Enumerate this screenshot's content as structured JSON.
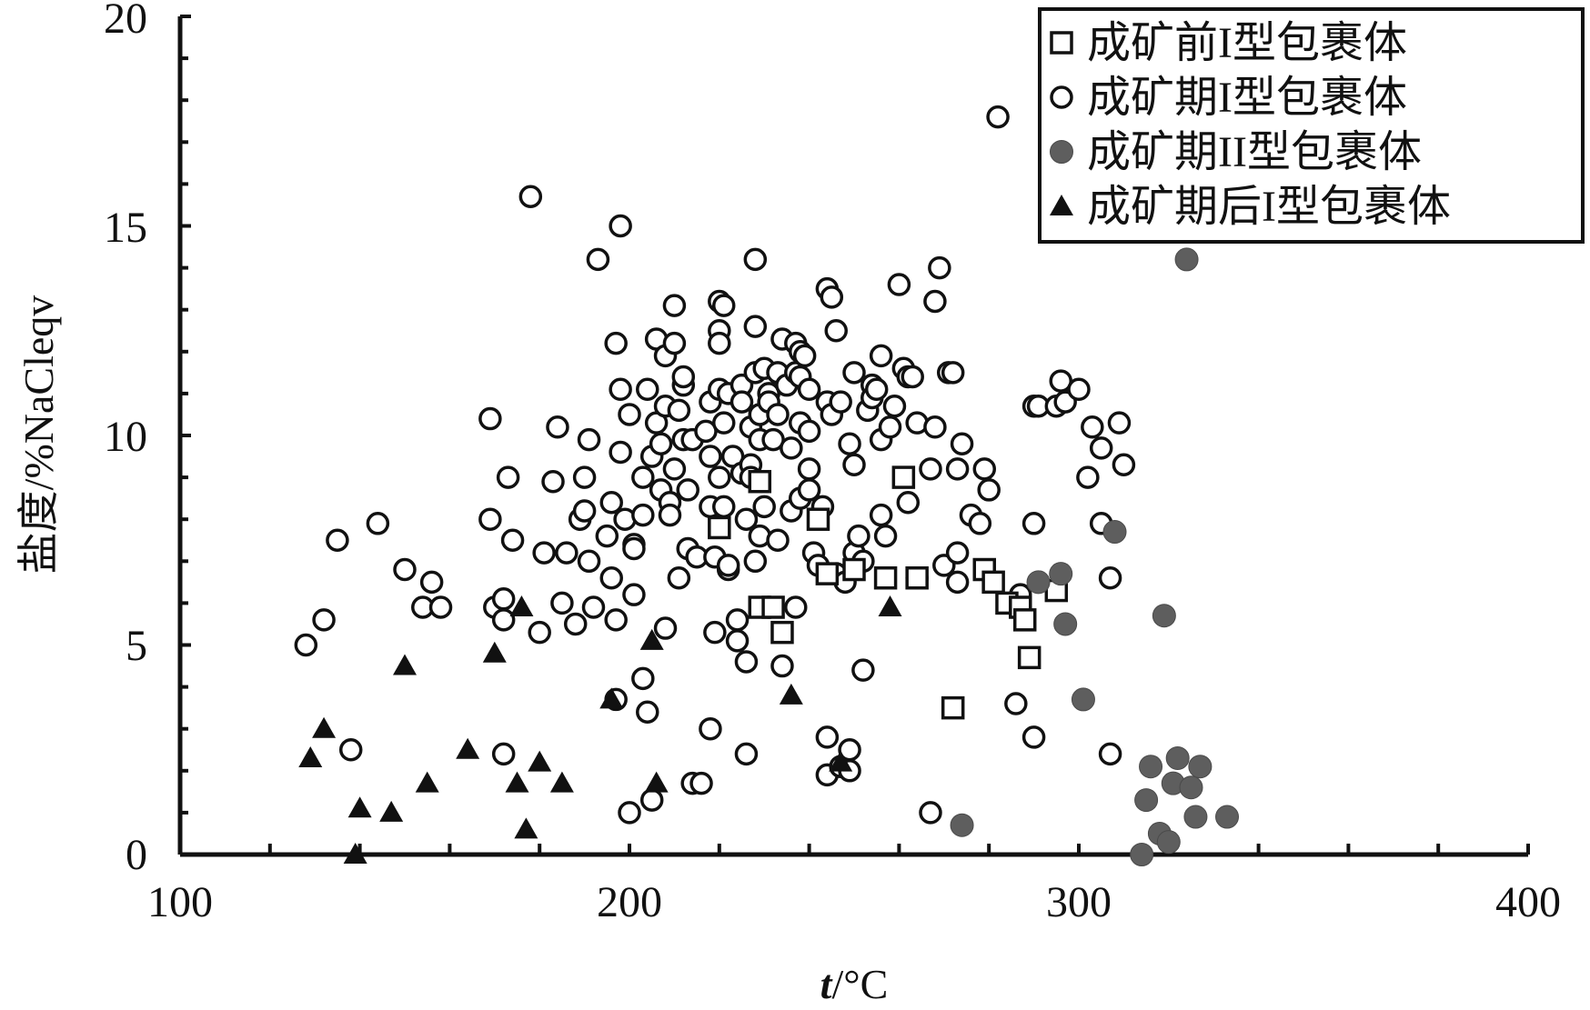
{
  "chart_data": {
    "type": "scatter",
    "xlabel_italic": "t",
    "xlabel_rest": "/°C",
    "ylabel": "盐度/%NaCleqv",
    "xlim": [
      100,
      400
    ],
    "ylim": [
      0,
      20
    ],
    "x_ticks": [
      "100",
      "200",
      "300",
      "400"
    ],
    "y_ticks": [
      "0",
      "5",
      "10",
      "15",
      "20"
    ],
    "grid": false,
    "legend_position": "top-right",
    "series": [
      {
        "name": "成矿前I型包裹体",
        "marker": "open-square",
        "color": "#111111",
        "points": [
          [
            220,
            7.8
          ],
          [
            229,
            8.9
          ],
          [
            229,
            5.9
          ],
          [
            232,
            5.9
          ],
          [
            234,
            5.3
          ],
          [
            242,
            8.0
          ],
          [
            244,
            6.7
          ],
          [
            250,
            6.8
          ],
          [
            257,
            6.6
          ],
          [
            261,
            9.0
          ],
          [
            264,
            6.6
          ],
          [
            272,
            3.5
          ],
          [
            279,
            6.8
          ],
          [
            281,
            6.5
          ],
          [
            284,
            6.0
          ],
          [
            287,
            5.9
          ],
          [
            288,
            5.6
          ],
          [
            289,
            4.7
          ],
          [
            295,
            6.3
          ]
        ]
      },
      {
        "name": "成矿期I型包裹体",
        "marker": "open-circle",
        "color": "#111111",
        "points": [
          [
            128,
            5.0
          ],
          [
            132,
            5.6
          ],
          [
            135,
            7.5
          ],
          [
            138,
            2.5
          ],
          [
            144,
            7.9
          ],
          [
            150,
            6.8
          ],
          [
            154,
            5.9
          ],
          [
            156,
            6.5
          ],
          [
            158,
            5.9
          ],
          [
            169,
            10.4
          ],
          [
            169,
            8.0
          ],
          [
            170,
            5.9
          ],
          [
            172,
            2.4
          ],
          [
            172,
            6.1
          ],
          [
            172,
            5.6
          ],
          [
            173,
            9.0
          ],
          [
            174,
            7.5
          ],
          [
            178,
            15.7
          ],
          [
            180,
            5.3
          ],
          [
            181,
            7.2
          ],
          [
            183,
            8.9
          ],
          [
            184,
            10.2
          ],
          [
            185,
            6.0
          ],
          [
            186,
            7.2
          ],
          [
            188,
            5.5
          ],
          [
            189,
            8.0
          ],
          [
            190,
            8.2
          ],
          [
            190,
            9.0
          ],
          [
            191,
            9.9
          ],
          [
            191,
            7.0
          ],
          [
            192,
            5.9
          ],
          [
            193,
            14.2
          ],
          [
            195,
            7.6
          ],
          [
            196,
            8.4
          ],
          [
            196,
            6.6
          ],
          [
            197,
            12.2
          ],
          [
            197,
            5.6
          ],
          [
            197,
            3.7
          ],
          [
            198,
            11.1
          ],
          [
            198,
            9.6
          ],
          [
            198,
            15.0
          ],
          [
            199,
            8.0
          ],
          [
            200,
            10.5
          ],
          [
            200,
            1.0
          ],
          [
            201,
            7.4
          ],
          [
            201,
            6.2
          ],
          [
            201,
            7.3
          ],
          [
            203,
            9.0
          ],
          [
            203,
            8.1
          ],
          [
            203,
            4.2
          ],
          [
            204,
            3.4
          ],
          [
            204,
            11.1
          ],
          [
            205,
            1.3
          ],
          [
            205,
            9.5
          ],
          [
            206,
            12.3
          ],
          [
            206,
            10.3
          ],
          [
            207,
            9.8
          ],
          [
            207,
            8.7
          ],
          [
            208,
            11.9
          ],
          [
            208,
            10.7
          ],
          [
            208,
            5.4
          ],
          [
            209,
            8.4
          ],
          [
            209,
            8.1
          ],
          [
            210,
            13.1
          ],
          [
            210,
            12.2
          ],
          [
            210,
            9.2
          ],
          [
            211,
            10.6
          ],
          [
            211,
            6.6
          ],
          [
            212,
            11.2
          ],
          [
            212,
            11.4
          ],
          [
            212,
            9.9
          ],
          [
            213,
            7.3
          ],
          [
            213,
            8.7
          ],
          [
            214,
            9.9
          ],
          [
            214,
            1.7
          ],
          [
            215,
            7.1
          ],
          [
            216,
            1.7
          ],
          [
            217,
            10.1
          ],
          [
            218,
            10.8
          ],
          [
            218,
            9.5
          ],
          [
            218,
            8.3
          ],
          [
            218,
            3.0
          ],
          [
            219,
            5.3
          ],
          [
            219,
            7.1
          ],
          [
            220,
            13.2
          ],
          [
            220,
            12.5
          ],
          [
            220,
            12.2
          ],
          [
            220,
            11.1
          ],
          [
            220,
            9.0
          ],
          [
            221,
            13.1
          ],
          [
            221,
            10.3
          ],
          [
            221,
            8.3
          ],
          [
            222,
            11.0
          ],
          [
            222,
            6.8
          ],
          [
            222,
            6.9
          ],
          [
            223,
            9.5
          ],
          [
            224,
            5.6
          ],
          [
            224,
            5.1
          ],
          [
            225,
            11.2
          ],
          [
            225,
            10.8
          ],
          [
            225,
            9.1
          ],
          [
            226,
            8.0
          ],
          [
            226,
            4.6
          ],
          [
            226,
            2.4
          ],
          [
            227,
            10.2
          ],
          [
            227,
            9.3
          ],
          [
            227,
            9.0
          ],
          [
            228,
            12.6
          ],
          [
            228,
            11.5
          ],
          [
            228,
            14.2
          ],
          [
            228,
            7.0
          ],
          [
            229,
            9.9
          ],
          [
            229,
            7.6
          ],
          [
            229,
            10.5
          ],
          [
            230,
            11.6
          ],
          [
            230,
            8.3
          ],
          [
            231,
            11.0
          ],
          [
            231,
            10.8
          ],
          [
            231,
            5.9
          ],
          [
            232,
            9.9
          ],
          [
            233,
            7.5
          ],
          [
            233,
            10.5
          ],
          [
            233,
            11.5
          ],
          [
            234,
            12.3
          ],
          [
            234,
            4.5
          ],
          [
            235,
            11.2
          ],
          [
            236,
            9.7
          ],
          [
            236,
            8.2
          ],
          [
            237,
            11.5
          ],
          [
            237,
            12.2
          ],
          [
            237,
            5.9
          ],
          [
            238,
            12.0
          ],
          [
            238,
            11.4
          ],
          [
            238,
            10.3
          ],
          [
            238,
            8.5
          ],
          [
            239,
            11.9
          ],
          [
            240,
            11.1
          ],
          [
            240,
            10.1
          ],
          [
            240,
            8.7
          ],
          [
            240,
            9.2
          ],
          [
            241,
            7.2
          ],
          [
            242,
            6.9
          ],
          [
            243,
            8.3
          ],
          [
            244,
            13.5
          ],
          [
            244,
            10.8
          ],
          [
            244,
            2.8
          ],
          [
            244,
            1.9
          ],
          [
            245,
            13.3
          ],
          [
            245,
            10.5
          ],
          [
            246,
            12.5
          ],
          [
            246,
            6.7
          ],
          [
            247,
            10.8
          ],
          [
            247,
            2.1
          ],
          [
            248,
            6.5
          ],
          [
            249,
            9.8
          ],
          [
            249,
            2.5
          ],
          [
            249,
            2.0
          ],
          [
            250,
            11.5
          ],
          [
            250,
            9.3
          ],
          [
            250,
            7.2
          ],
          [
            251,
            7.6
          ],
          [
            252,
            7.0
          ],
          [
            252,
            4.4
          ],
          [
            253,
            10.6
          ],
          [
            254,
            11.2
          ],
          [
            254,
            10.9
          ],
          [
            255,
            11.1
          ],
          [
            256,
            11.9
          ],
          [
            256,
            9.9
          ],
          [
            256,
            8.1
          ],
          [
            257,
            7.6
          ],
          [
            258,
            10.2
          ],
          [
            259,
            10.7
          ],
          [
            260,
            13.6
          ],
          [
            261,
            11.6
          ],
          [
            262,
            11.4
          ],
          [
            262,
            8.4
          ],
          [
            263,
            11.4
          ],
          [
            264,
            10.3
          ],
          [
            264,
            6.6
          ],
          [
            267,
            9.2
          ],
          [
            267,
            1.0
          ],
          [
            268,
            13.2
          ],
          [
            268,
            10.2
          ],
          [
            269,
            14.0
          ],
          [
            270,
            6.9
          ],
          [
            271,
            11.5
          ],
          [
            272,
            11.5
          ],
          [
            273,
            9.2
          ],
          [
            273,
            6.5
          ],
          [
            273,
            7.2
          ],
          [
            274,
            9.8
          ],
          [
            276,
            8.1
          ],
          [
            278,
            7.9
          ],
          [
            279,
            9.2
          ],
          [
            280,
            8.7
          ],
          [
            282,
            17.6
          ],
          [
            286,
            3.6
          ],
          [
            287,
            6.2
          ],
          [
            290,
            10.7
          ],
          [
            290,
            7.9
          ],
          [
            290,
            2.8
          ],
          [
            291,
            10.7
          ],
          [
            295,
            10.7
          ],
          [
            296,
            11.3
          ],
          [
            297,
            10.8
          ],
          [
            300,
            11.1
          ],
          [
            302,
            9.0
          ],
          [
            303,
            10.2
          ],
          [
            305,
            7.9
          ],
          [
            305,
            9.7
          ],
          [
            307,
            2.4
          ],
          [
            307,
            6.6
          ],
          [
            309,
            10.3
          ],
          [
            310,
            9.3
          ]
        ]
      },
      {
        "name": "成矿期II型包裹体",
        "marker": "filled-circle",
        "color": "#5e5e5e",
        "points": [
          [
            274,
            0.7
          ],
          [
            291,
            6.5
          ],
          [
            296,
            6.7
          ],
          [
            297,
            5.5
          ],
          [
            301,
            3.7
          ],
          [
            308,
            7.7
          ],
          [
            314,
            0.0
          ],
          [
            315,
            1.3
          ],
          [
            316,
            2.1
          ],
          [
            318,
            0.5
          ],
          [
            319,
            5.7
          ],
          [
            320,
            0.3
          ],
          [
            321,
            1.7
          ],
          [
            322,
            2.3
          ],
          [
            324,
            14.2
          ],
          [
            325,
            1.6
          ],
          [
            326,
            0.9
          ],
          [
            327,
            2.1
          ],
          [
            333,
            0.9
          ]
        ]
      },
      {
        "name": "成矿期后I型包裹体",
        "marker": "filled-triangle",
        "color": "#111111",
        "points": [
          [
            129,
            2.3
          ],
          [
            132,
            3.0
          ],
          [
            139,
            0.0
          ],
          [
            140,
            1.1
          ],
          [
            147,
            1.0
          ],
          [
            150,
            4.5
          ],
          [
            155,
            1.7
          ],
          [
            164,
            2.5
          ],
          [
            170,
            4.8
          ],
          [
            175,
            1.7
          ],
          [
            176,
            5.9
          ],
          [
            177,
            0.6
          ],
          [
            180,
            2.2
          ],
          [
            185,
            1.7
          ],
          [
            196,
            3.7
          ],
          [
            205,
            5.1
          ],
          [
            206,
            1.7
          ],
          [
            236,
            3.8
          ],
          [
            247,
            2.2
          ],
          [
            258,
            5.9
          ]
        ]
      }
    ]
  }
}
